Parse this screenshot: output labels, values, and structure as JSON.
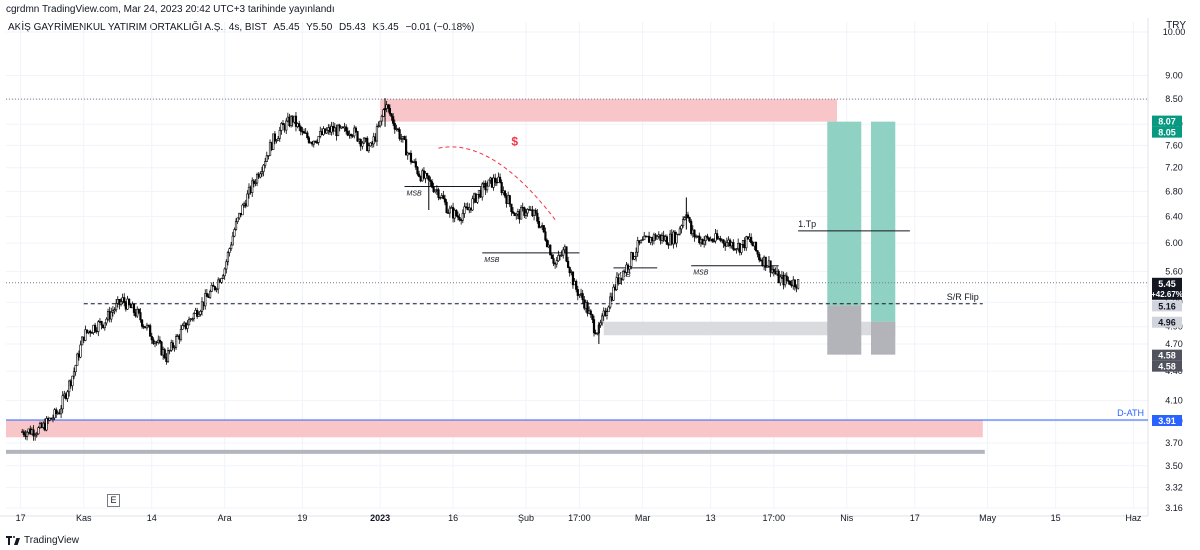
{
  "header": {
    "published": "cgrdmn TradingView.com, Mar 24, 2023 20:42 UTC+3 tarihinde yayınlandı",
    "symbol": "AKİŞ GAYRİMENKUL YATIRIM ORTAKLIĞI A.Ş., 4s, BIST",
    "open": "A5.45",
    "high": "Y5.50",
    "low": "D5.43",
    "close": "K5.45",
    "change": "−0.01 (−0.18%)",
    "currency": "TRY"
  },
  "footer": {
    "brand": "TradingView",
    "e_marker": "E"
  },
  "chart_data": {
    "type": "candlestick",
    "ylim": [
      3.16,
      10.0
    ],
    "y_ticks": [
      10.0,
      9.0,
      8.5,
      8.0,
      7.6,
      7.2,
      6.8,
      6.4,
      6.0,
      5.6,
      5.2,
      4.9,
      4.7,
      4.4,
      4.1,
      3.9,
      3.7,
      3.5,
      3.32,
      3.16
    ],
    "x_ticks": [
      "17",
      "Kas",
      "14",
      "Ara",
      "19",
      "2023",
      "16",
      "Şub",
      "17:00",
      "Mar",
      "13",
      "17:00",
      "Nis",
      "17",
      "May",
      "15",
      "Haz"
    ],
    "x_tick_ix": [
      0,
      13,
      27,
      42,
      58,
      74,
      89,
      104,
      115,
      128,
      142,
      155,
      170,
      184,
      199,
      213,
      229
    ],
    "x_range_ix": [
      -3,
      232
    ],
    "price_path": [
      [
        0,
        3.8
      ],
      [
        4,
        3.82
      ],
      [
        8,
        4.0
      ],
      [
        11,
        4.4
      ],
      [
        13,
        4.8
      ],
      [
        15,
        4.9
      ],
      [
        17,
        4.95
      ],
      [
        19,
        5.1
      ],
      [
        21,
        5.22
      ],
      [
        24,
        5.05
      ],
      [
        27,
        4.8
      ],
      [
        30,
        4.55
      ],
      [
        32,
        4.75
      ],
      [
        35,
        5.0
      ],
      [
        37,
        5.15
      ],
      [
        40,
        5.4
      ],
      [
        42,
        5.65
      ],
      [
        44,
        6.2
      ],
      [
        46,
        6.6
      ],
      [
        48,
        6.95
      ],
      [
        50,
        7.3
      ],
      [
        52,
        7.7
      ],
      [
        54,
        7.95
      ],
      [
        56,
        8.1
      ],
      [
        58,
        7.8
      ],
      [
        60,
        7.7
      ],
      [
        62,
        7.8
      ],
      [
        64,
        7.9
      ],
      [
        66,
        7.85
      ],
      [
        68,
        7.9
      ],
      [
        70,
        7.7
      ],
      [
        72,
        7.55
      ],
      [
        74,
        8.0
      ],
      [
        75,
        8.4
      ],
      [
        76,
        8.2
      ],
      [
        78,
        7.8
      ],
      [
        80,
        7.4
      ],
      [
        82,
        7.1
      ],
      [
        84,
        6.95
      ],
      [
        86,
        6.8
      ],
      [
        88,
        6.5
      ],
      [
        90,
        6.4
      ],
      [
        92,
        6.5
      ],
      [
        94,
        6.75
      ],
      [
        96,
        6.9
      ],
      [
        98,
        7.0
      ],
      [
        100,
        6.7
      ],
      [
        102,
        6.4
      ],
      [
        104,
        6.5
      ],
      [
        106,
        6.4
      ],
      [
        108,
        6.1
      ],
      [
        110,
        5.7
      ],
      [
        112,
        5.9
      ],
      [
        114,
        5.4
      ],
      [
        116,
        5.2
      ],
      [
        118,
        4.9
      ],
      [
        119,
        4.85
      ],
      [
        121,
        5.2
      ],
      [
        123,
        5.5
      ],
      [
        125,
        5.7
      ],
      [
        127,
        5.95
      ],
      [
        129,
        6.05
      ],
      [
        131,
        6.1
      ],
      [
        133,
        6.05
      ],
      [
        135,
        6.1
      ],
      [
        137,
        6.5
      ],
      [
        138,
        6.15
      ],
      [
        140,
        6.05
      ],
      [
        142,
        6.05
      ],
      [
        144,
        6.05
      ],
      [
        146,
        6.0
      ],
      [
        148,
        5.95
      ],
      [
        150,
        6.05
      ],
      [
        152,
        5.8
      ],
      [
        154,
        5.7
      ],
      [
        156,
        5.5
      ],
      [
        158,
        5.47
      ],
      [
        160,
        5.45
      ]
    ],
    "price_lines": [
      {
        "label": "5.45",
        "sub": "+42.67%",
        "value": 5.45,
        "style": "last"
      },
      {
        "label": "8.07",
        "value": 8.07,
        "style": "green"
      },
      {
        "label": "8.05",
        "value": 8.05,
        "style": "green"
      },
      {
        "label": "5.16",
        "value": 5.16,
        "style": "grey"
      },
      {
        "label": "4.96",
        "value": 4.96,
        "style": "grey"
      },
      {
        "label": "4.58",
        "value": 4.58,
        "style": "dark"
      },
      {
        "label": "4.58",
        "value": 4.58,
        "style": "dark"
      },
      {
        "label": "3.91",
        "value": 3.91,
        "style": "blue"
      }
    ],
    "zones": [
      {
        "name": "supply-zone",
        "x0": 74,
        "x1": 168,
        "y0": 8.05,
        "y1": 8.5,
        "color": "#f8c5c8"
      },
      {
        "name": "demand-zone",
        "x0": -3,
        "x1": 198,
        "y0": 3.75,
        "y1": 3.91,
        "color": "#f8c5c8"
      },
      {
        "name": "grey-zone",
        "x0": 120,
        "x1": 180,
        "y0": 4.8,
        "y1": 4.96,
        "color": "#dadbde"
      }
    ],
    "positions": [
      {
        "name": "long-position-1",
        "x0": 166,
        "x1": 173,
        "entry": 5.16,
        "target": 8.05,
        "stop": 4.58
      },
      {
        "name": "long-position-2",
        "x0": 175,
        "x1": 180,
        "entry": 4.96,
        "target": 8.05,
        "stop": 4.58
      }
    ],
    "levels": [
      {
        "name": "sr-flip-line",
        "value": 5.18,
        "x0": 13,
        "x1": 198,
        "dashed": true,
        "label": "S/R Flip"
      },
      {
        "name": "d-ath-line",
        "value": 3.91,
        "x0": -3,
        "x1": 232,
        "color": "#2962ff",
        "label": "D-ATH"
      },
      {
        "name": "tp-line",
        "value": 6.18,
        "x0": 160,
        "x1": 183,
        "label": "1.Tp"
      },
      {
        "name": "top-dotted-line",
        "value": 8.5,
        "x0": -3,
        "x1": 232,
        "dotted": true
      },
      {
        "name": "last-dotted-line",
        "value": 5.45,
        "x0": -3,
        "x1": 232,
        "dotted": true
      }
    ],
    "msb_lines": [
      {
        "label": "MSB",
        "value": 6.88,
        "x0": 79,
        "x1": 96
      },
      {
        "label": "MSB",
        "value": 5.86,
        "x0": 95,
        "x1": 115
      },
      {
        "label": "MSB",
        "value": 5.65,
        "x0": 122,
        "x1": 131
      },
      {
        "label": "MSB",
        "value": 5.68,
        "x0": 138,
        "x1": 156
      }
    ],
    "annotation_dollar": "$"
  }
}
